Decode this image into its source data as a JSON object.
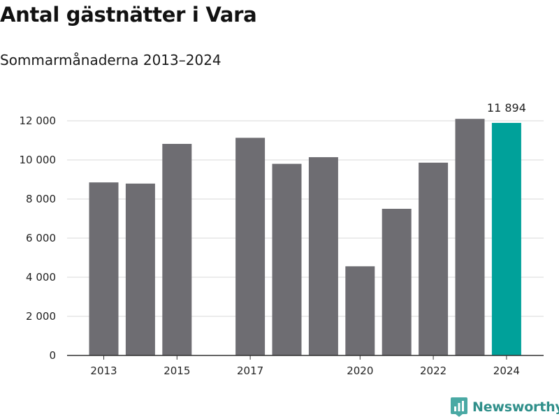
{
  "header": {
    "title": "Antal gästnätter i Vara",
    "subtitle": "Sommarmånaderna 2013–2024"
  },
  "branding": {
    "logo_text": "Newsworthy",
    "logo_color": "#2f8f8a"
  },
  "colors": {
    "bar": "#6e6d72",
    "highlight": "#00a19a",
    "grid": "#d9d9d9",
    "axis": "#333333"
  },
  "chart_data": {
    "type": "bar",
    "title": "Antal gästnätter i Vara",
    "subtitle": "Sommarmånaderna 2013–2024",
    "categories": [
      2013,
      2014,
      2015,
      2016,
      2017,
      2018,
      2019,
      2020,
      2021,
      2022,
      2023,
      2024
    ],
    "values": [
      8850,
      8790,
      10820,
      null,
      11130,
      9800,
      10140,
      4560,
      7500,
      9860,
      12100,
      11894
    ],
    "highlight_category": 2024,
    "data_labels": [
      {
        "category": 2024,
        "text": "11 894"
      }
    ],
    "y_ticks": [
      0,
      2000,
      4000,
      6000,
      8000,
      10000,
      12000
    ],
    "y_tick_labels": [
      "0",
      "2 000",
      "4 000",
      "6 000",
      "8 000",
      "10 000",
      "12 000"
    ],
    "x_tick_labels": [
      "2013",
      "2015",
      "2017",
      "2020",
      "2022",
      "2024"
    ],
    "ylim": [
      0,
      12000
    ],
    "xlabel": "",
    "ylabel": "",
    "grid": true,
    "legend": "none"
  }
}
